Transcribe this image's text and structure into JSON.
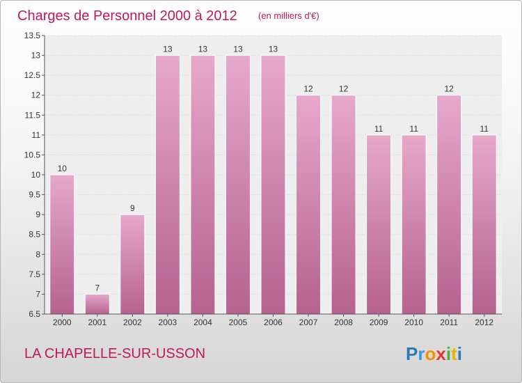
{
  "title": "Charges de Personnel 2000 à 2012",
  "unit_note": "(en milliers d'€)",
  "commune": "LA CHAPELLE-SUR-USSON",
  "logo": {
    "letters": [
      "P",
      "r",
      "o",
      "x",
      "i",
      "t",
      "i"
    ],
    "colors": [
      "#2a7ab8",
      "#3a9ad8",
      "#f29200",
      "#e03a2e",
      "#4caf3e",
      "#e8b400",
      "#2a7ab8"
    ]
  },
  "colors": {
    "bar": "#d98bb5",
    "bar_top": "#e6a8cb",
    "bar_bottom": "#b5628f",
    "title": "#c2185b",
    "plot_bg": "#eeeeee"
  },
  "chart_data": {
    "type": "bar",
    "title": "Charges de Personnel 2000 à 2012",
    "xlabel": "",
    "ylabel": "",
    "categories": [
      "2000",
      "2001",
      "2002",
      "2003",
      "2004",
      "2005",
      "2006",
      "2007",
      "2008",
      "2009",
      "2010",
      "2011",
      "2012"
    ],
    "values": [
      10,
      7,
      9,
      13,
      13,
      13,
      13,
      12,
      12,
      11,
      11,
      12,
      11
    ],
    "value_labels": [
      "10",
      "7",
      "9",
      "13",
      "13",
      "13",
      "13",
      "12",
      "12",
      "11",
      "11",
      "12",
      "11"
    ],
    "ylim": [
      6.5,
      13.5
    ],
    "yticks": [
      6.5,
      7,
      7.5,
      8,
      8.5,
      9,
      9.5,
      10,
      10.5,
      11,
      11.5,
      12,
      12.5,
      13,
      13.5
    ],
    "ytick_labels": [
      "6.5",
      "7",
      "7.5",
      "8",
      "8.5",
      "9",
      "9.5",
      "10",
      "10.5",
      "11",
      "11.5",
      "12",
      "12.5",
      "13",
      "13.5"
    ],
    "grid": true
  }
}
